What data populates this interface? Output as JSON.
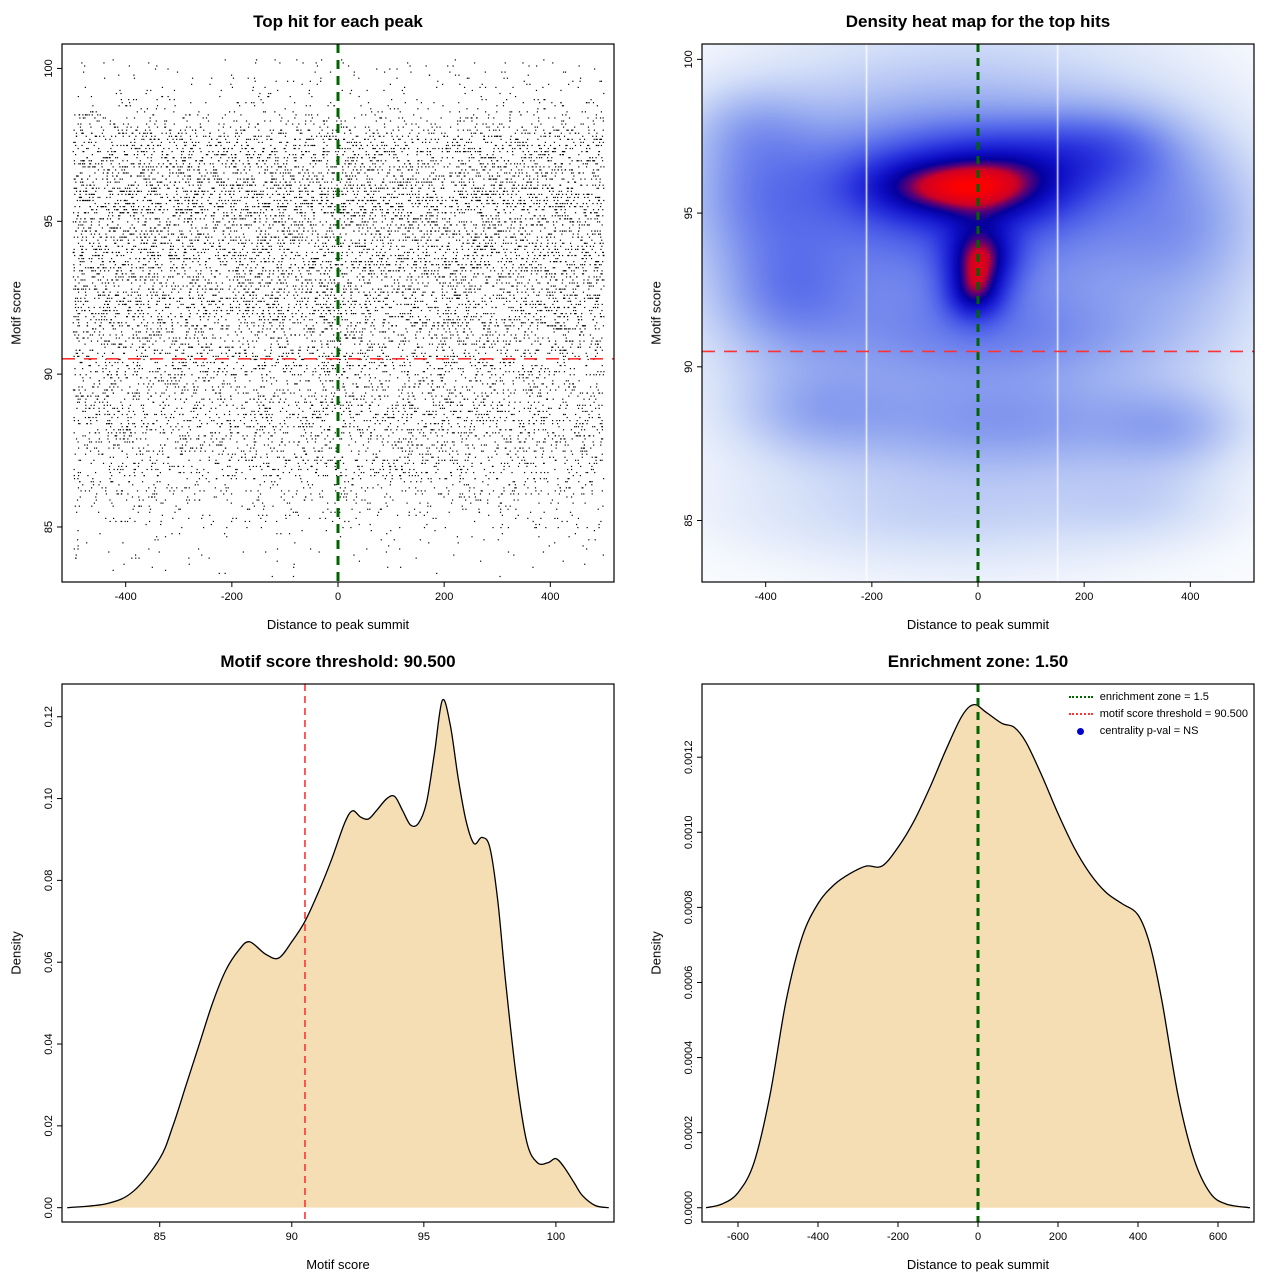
{
  "figure": {
    "background": "#ffffff"
  },
  "chart_data": [
    {
      "id": "top-hits-scatter",
      "type": "scatter",
      "title": "Top hit for each peak",
      "xlabel": "Distance to peak summit",
      "ylabel": "Motif score",
      "xlim": [
        -520,
        520
      ],
      "ylim": [
        83.2,
        100.8
      ],
      "xticks": [
        -400,
        -200,
        0,
        200,
        400
      ],
      "xtick_labels": [
        "-400",
        "-200",
        "0",
        "200",
        "400"
      ],
      "yticks": [
        85,
        90,
        95,
        100
      ],
      "ytick_labels": [
        "85",
        "90",
        "95",
        "100"
      ],
      "point_color": "#000000",
      "n_points": 12000,
      "seed": 20240613,
      "x_distribution": {
        "type": "uniform",
        "min": -500,
        "max": 500
      },
      "y_distribution": {
        "type": "empirical_from_motif_score_density",
        "quantize": 0.1,
        "min": 83.4,
        "max": 100.35
      },
      "vline": {
        "x": 0,
        "color": "#006400",
        "width": 3,
        "dash": [
          9,
          7
        ]
      },
      "hline": {
        "y": 90.5,
        "color": "#ff3333",
        "width": 1.6,
        "dash": [
          13,
          9
        ]
      }
    },
    {
      "id": "top-hits-heatmap",
      "type": "heatmap",
      "title": "Density heat map for the top hits",
      "xlabel": "Distance to peak summit",
      "ylabel": "Motif score",
      "xlim": [
        -520,
        520
      ],
      "ylim": [
        83.0,
        100.5
      ],
      "xticks": [
        -400,
        -200,
        0,
        200,
        400
      ],
      "xtick_labels": [
        "-400",
        "-200",
        "0",
        "200",
        "400"
      ],
      "yticks": [
        85,
        90,
        95,
        100
      ],
      "ytick_labels": [
        "85",
        "90",
        "95",
        "100"
      ],
      "density_blobs": [
        [
          0,
          92.8,
          560,
          9.0,
          0.3
        ],
        [
          -40,
          94.8,
          420,
          4.8,
          0.45
        ],
        [
          -60,
          96.0,
          300,
          2.0,
          0.45
        ],
        [
          10,
          95.8,
          150,
          1.15,
          0.85
        ],
        [
          -140,
          95.9,
          115,
          0.95,
          0.35
        ],
        [
          5,
          93.6,
          65,
          1.0,
          1.0
        ],
        [
          -5,
          92.4,
          55,
          0.9,
          0.85
        ],
        [
          50,
          91.0,
          350,
          1.4,
          0.22
        ],
        [
          -360,
          92.4,
          130,
          1.9,
          0.35
        ],
        [
          60,
          88.1,
          320,
          1.6,
          0.32
        ],
        [
          -310,
          88.6,
          150,
          1.5,
          0.25
        ],
        [
          370,
          88.0,
          130,
          1.3,
          0.25
        ],
        [
          -80,
          85.2,
          420,
          1.6,
          0.15
        ],
        [
          320,
          85.6,
          160,
          1.3,
          0.12
        ],
        [
          390,
          94.6,
          150,
          2.6,
          0.28
        ],
        [
          250,
          97.2,
          130,
          1.3,
          0.3
        ],
        [
          -420,
          95.5,
          130,
          2.2,
          0.3
        ],
        [
          -430,
          97.8,
          120,
          1.4,
          0.22
        ],
        [
          120,
          96.8,
          180,
          1.2,
          0.3
        ]
      ],
      "colormap_stops": [
        [
          0.0,
          255,
          255,
          255
        ],
        [
          0.06,
          245,
          248,
          253
        ],
        [
          0.15,
          213,
          224,
          248
        ],
        [
          0.3,
          150,
          170,
          240
        ],
        [
          0.45,
          88,
          108,
          235
        ],
        [
          0.6,
          42,
          52,
          222
        ],
        [
          0.72,
          15,
          15,
          198
        ],
        [
          0.8,
          5,
          0,
          158
        ],
        [
          0.86,
          95,
          0,
          115
        ],
        [
          0.91,
          205,
          0,
          38
        ],
        [
          1.0,
          255,
          0,
          0
        ]
      ],
      "gamma": 0.85,
      "white_gap_lines_x": [
        -210,
        150
      ],
      "vline": {
        "x": 0,
        "color": "#006400",
        "width": 3,
        "dash": [
          8,
          6
        ]
      },
      "hline": {
        "y": 90.5,
        "color": "#ff3333",
        "width": 1.6,
        "dash": [
          13,
          9
        ]
      }
    },
    {
      "id": "motif-score-density",
      "type": "area",
      "title": "Motif score threshold: 90.500",
      "xlabel": "Motif score",
      "ylabel": "Density",
      "threshold": 90.5,
      "xlim": [
        81.3,
        102.2
      ],
      "ylim": [
        -0.0035,
        0.128
      ],
      "xticks": [
        85,
        90,
        95,
        100
      ],
      "xtick_labels": [
        "85",
        "90",
        "95",
        "100"
      ],
      "yticks": [
        0,
        0.02,
        0.04,
        0.06,
        0.08,
        0.1,
        0.12
      ],
      "ytick_labels": [
        "0.00",
        "0.02",
        "0.04",
        "0.06",
        "0.08",
        "0.10",
        "0.12"
      ],
      "fill": "#f5deb3",
      "stroke": "#000000",
      "x": [
        81.5,
        83,
        84,
        85,
        85.5,
        86,
        86.5,
        87,
        87.5,
        88,
        88.4,
        89,
        89.5,
        90,
        90.5,
        91,
        91.5,
        92,
        92.3,
        92.6,
        92.9,
        93.2,
        93.6,
        93.9,
        94.2,
        94.5,
        94.8,
        95.1,
        95.4,
        95.7,
        96,
        96.3,
        96.6,
        96.9,
        97.2,
        97.5,
        97.8,
        98.1,
        98.5,
        98.9,
        99.3,
        99.7,
        100,
        100.3,
        100.7,
        101,
        101.5,
        102
      ],
      "y": [
        0,
        0.001,
        0.004,
        0.012,
        0.02,
        0.03,
        0.04,
        0.05,
        0.058,
        0.063,
        0.065,
        0.062,
        0.061,
        0.065,
        0.07,
        0.077,
        0.085,
        0.094,
        0.097,
        0.0955,
        0.095,
        0.097,
        0.1,
        0.1005,
        0.097,
        0.0935,
        0.094,
        0.099,
        0.111,
        0.124,
        0.118,
        0.105,
        0.0945,
        0.089,
        0.0905,
        0.088,
        0.075,
        0.055,
        0.032,
        0.016,
        0.011,
        0.011,
        0.012,
        0.01,
        0.006,
        0.003,
        0.0005,
        0
      ],
      "vline": {
        "x": 90.5,
        "color": "#ff3333",
        "width": 1.6,
        "dash": [
          7,
          5
        ]
      }
    },
    {
      "id": "summit-distance-density",
      "type": "area",
      "title": "Enrichment zone: 1.50",
      "xlabel": "Distance to peak summit",
      "ylabel": "Density",
      "enrichment_zone": 1.5,
      "xlim": [
        -690,
        690
      ],
      "ylim": [
        -3.8e-05,
        0.001395
      ],
      "xticks": [
        -600,
        -400,
        -200,
        0,
        200,
        400,
        600
      ],
      "xtick_labels": [
        "-600",
        "-400",
        "-200",
        "0",
        "200",
        "400",
        "600"
      ],
      "yticks": [
        0,
        0.0002,
        0.0004,
        0.0006,
        0.0008,
        0.001,
        0.0012
      ],
      "ytick_labels": [
        "0.0000",
        "0.0002",
        "0.0004",
        "0.0006",
        "0.0008",
        "0.0010",
        "0.0012"
      ],
      "fill": "#f5deb3",
      "stroke": "#000000",
      "x": [
        -680,
        -640,
        -600,
        -560,
        -520,
        -480,
        -440,
        -400,
        -360,
        -320,
        -280,
        -240,
        -200,
        -160,
        -120,
        -80,
        -40,
        -10,
        20,
        60,
        90,
        120,
        160,
        200,
        240,
        280,
        320,
        360,
        400,
        430,
        460,
        500,
        540,
        580,
        620,
        680
      ],
      "y": [
        0,
        1e-05,
        4e-05,
        0.00012,
        0.0003,
        0.00055,
        0.00072,
        0.00081,
        0.00086,
        0.00089,
        0.00091,
        0.00091,
        0.00096,
        0.00103,
        0.00112,
        0.00122,
        0.00131,
        0.00134,
        0.00132,
        0.00129,
        0.00128,
        0.00124,
        0.00115,
        0.00105,
        0.00096,
        0.00089,
        0.00084,
        0.00081,
        0.00078,
        0.0007,
        0.00055,
        0.0003,
        0.00013,
        4e-05,
        1e-05,
        0
      ],
      "vline": {
        "x": 0,
        "color": "#006400",
        "width": 3,
        "dash": [
          8,
          6
        ]
      },
      "legend": {
        "items": [
          {
            "label": "enrichment zone = 1.5",
            "color": "#006400",
            "style": "dotted-line"
          },
          {
            "label": "motif score threshold = 90.500",
            "color": "#ff3333",
            "style": "dotted-line"
          },
          {
            "label": "centrality p-val = NS",
            "color": "#0000cc",
            "style": "dot"
          }
        ]
      }
    }
  ]
}
